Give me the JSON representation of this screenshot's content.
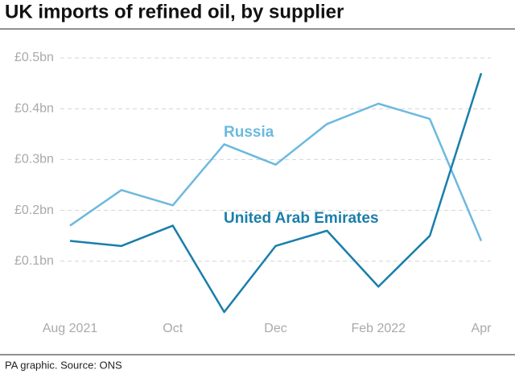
{
  "chart_data": {
    "type": "line",
    "title": "UK imports of refined oil, by supplier",
    "source": "PA graphic. Source: ONS",
    "categories": [
      "Aug 2021",
      null,
      "Oct",
      null,
      "Dec",
      null,
      "Feb 2022",
      null,
      "Apr"
    ],
    "series": [
      {
        "name": "Russia",
        "color": "#6cb9df",
        "values": [
          0.17,
          0.24,
          0.21,
          0.33,
          0.29,
          0.37,
          0.41,
          0.38,
          0.14
        ]
      },
      {
        "name": "United Arab Emirates",
        "color": "#1a7eab",
        "values": [
          0.14,
          0.13,
          0.17,
          0.0,
          0.13,
          0.16,
          0.05,
          0.15,
          0.47
        ]
      }
    ],
    "ylim": [
      0,
      0.5
    ],
    "yticks": [
      {
        "value": 0.1,
        "label": "£0.1bn"
      },
      {
        "value": 0.2,
        "label": "£0.2bn"
      },
      {
        "value": 0.3,
        "label": "£0.3bn"
      },
      {
        "value": 0.4,
        "label": "£0.4bn"
      },
      {
        "value": 0.5,
        "label": "£0.5bn"
      }
    ],
    "grid": true
  }
}
